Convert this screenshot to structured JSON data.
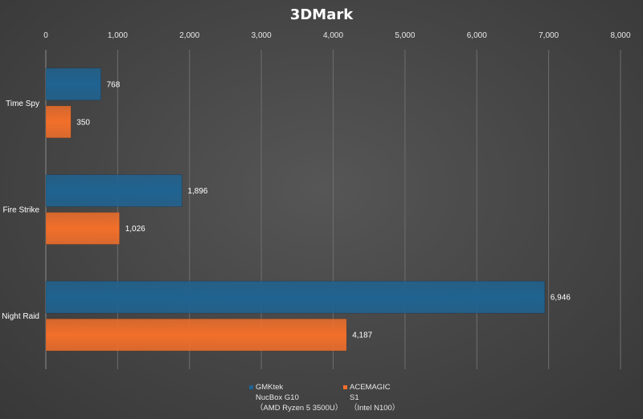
{
  "chart_data": {
    "type": "bar",
    "orientation": "horizontal",
    "title": "3DMark",
    "categories": [
      "Time Spy",
      "Fire Strike",
      "Night Raid"
    ],
    "series": [
      {
        "name": "GMKtek NucBox G10 （AMD Ryzen 5 3500U）",
        "legend_lines": [
          "GMKtek",
          "NucBox G10",
          "（AMD Ryzen 5 3500U）"
        ],
        "color": "#1f6391",
        "values": [
          768,
          1896,
          6946
        ]
      },
      {
        "name": "ACEMAGIC S1 （Intel N100）",
        "legend_lines": [
          "ACEMAGIC",
          "S1",
          "（Intel N100）"
        ],
        "color": "#f26f2a",
        "values": [
          350,
          1026,
          4187
        ]
      }
    ],
    "value_labels": [
      [
        "768",
        "1,896",
        "6,946"
      ],
      [
        "350",
        "1,026",
        "4,187"
      ]
    ],
    "xlim": [
      0,
      8000
    ],
    "xticks": [
      0,
      1000,
      2000,
      3000,
      4000,
      5000,
      6000,
      7000,
      8000
    ],
    "xtick_labels": [
      "0",
      "1,000",
      "2,000",
      "3,000",
      "4,000",
      "5,000",
      "6,000",
      "7,000",
      "8,000"
    ],
    "x_axis_position": "top",
    "grid": true,
    "legend_position": "bottom"
  }
}
